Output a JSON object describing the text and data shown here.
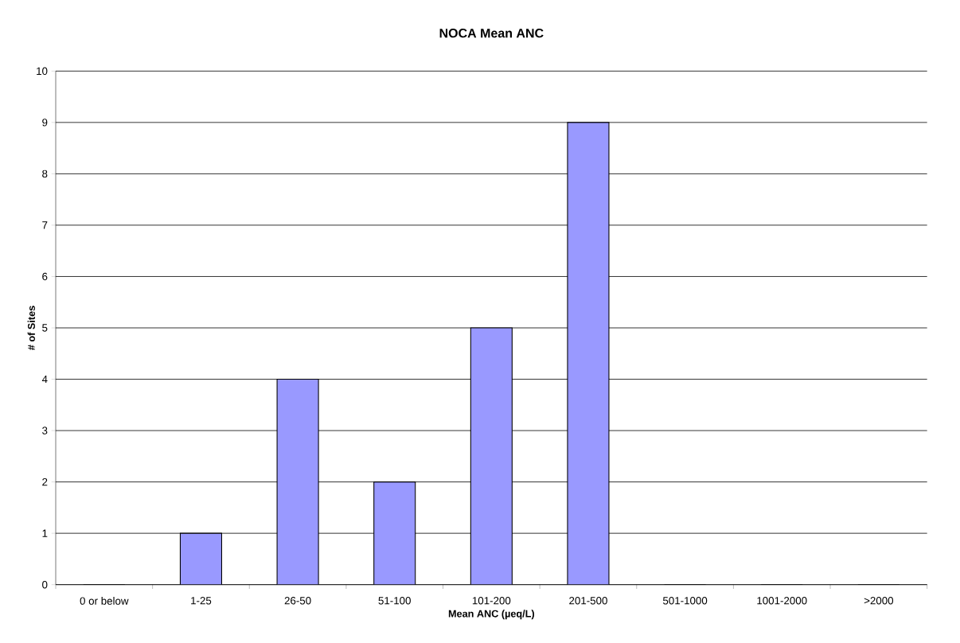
{
  "chart_data": {
    "type": "bar",
    "title": "NOCA Mean ANC",
    "xlabel": "Mean ANC (µeq/L)",
    "ylabel": "# of Sites",
    "categories": [
      "0 or below",
      "1-25",
      "26-50",
      "51-100",
      "101-200",
      "201-500",
      "501-1000",
      "1001-2000",
      ">2000"
    ],
    "values": [
      0,
      1,
      4,
      2,
      5,
      9,
      0,
      0,
      0
    ],
    "color": "#9999ff",
    "ylim": [
      0,
      10
    ],
    "yticks": [
      0,
      1,
      2,
      3,
      4,
      5,
      6,
      7,
      8,
      9,
      10
    ],
    "grid": "y"
  }
}
